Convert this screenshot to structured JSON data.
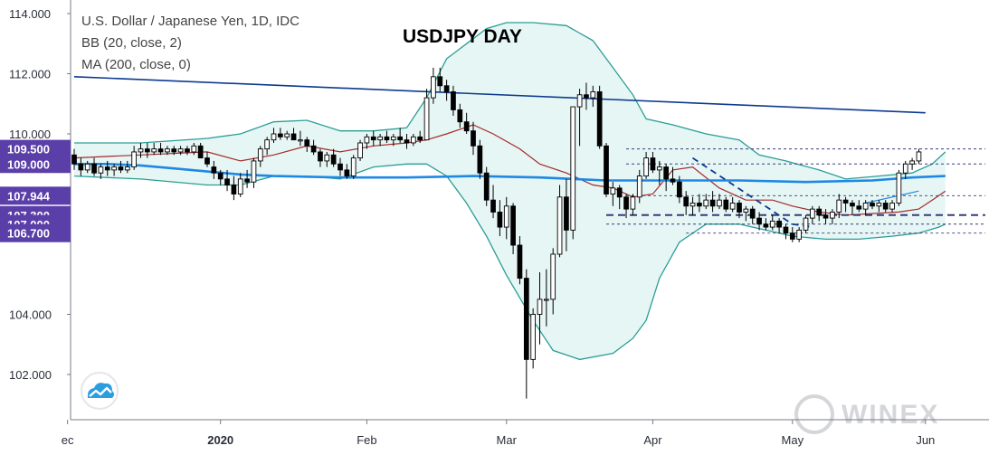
{
  "colors": {
    "axis_badge": "#5b3fa8",
    "bb_line": "#2a9d96",
    "bb_fill": "#e6f6f4",
    "ma200": "#1e88e5",
    "bb_basis": "#a52a2a",
    "trendline": "#0d3a8f",
    "level_dash": "#3a3a7a",
    "candle": "#000000"
  },
  "legend": {
    "symbol": "U.S. Dollar / Japanese Yen, 1D, IDC",
    "bb": "BB (20, close, 2)",
    "ma": "MA (200, close, 0)"
  },
  "title": "USDJPY DAY",
  "watermark": "WINEX",
  "logo_icon": "tradingview-cloud-icon",
  "chart_data": {
    "type": "candlestick",
    "ylim": [
      100.9,
      114.1
    ],
    "yticks": [
      {
        "value": 114.0,
        "label": "114.000",
        "highlight": false
      },
      {
        "value": 112.0,
        "label": "112.000",
        "highlight": false
      },
      {
        "value": 110.0,
        "label": "110.000",
        "highlight": false
      },
      {
        "value": 109.5,
        "label": "109.500",
        "highlight": true
      },
      {
        "value": 109.0,
        "label": "109.000",
        "highlight": true
      },
      {
        "value": 107.944,
        "label": "107.944",
        "highlight": true
      },
      {
        "value": 107.3,
        "label": "107.300",
        "highlight": true
      },
      {
        "value": 107.0,
        "label": "107.000",
        "highlight": true
      },
      {
        "value": 106.7,
        "label": "106.700",
        "highlight": true
      },
      {
        "value": 104.0,
        "label": "104.000",
        "highlight": false
      },
      {
        "value": 102.0,
        "label": "102.000",
        "highlight": false
      }
    ],
    "xticks": [
      {
        "index": -1,
        "label": "ec",
        "bold": false
      },
      {
        "index": 22,
        "label": "2020",
        "bold": true
      },
      {
        "index": 44,
        "label": "Feb",
        "bold": false
      },
      {
        "index": 65,
        "label": "Mar",
        "bold": false
      },
      {
        "index": 87,
        "label": "Apr",
        "bold": false
      },
      {
        "index": 108,
        "label": "May",
        "bold": false
      },
      {
        "index": 128,
        "label": "Jun",
        "bold": false
      }
    ],
    "candles": [
      [
        109.3,
        109.5,
        108.8,
        109.0
      ],
      [
        109.0,
        109.2,
        108.6,
        108.8
      ],
      [
        108.8,
        109.1,
        108.7,
        109.0
      ],
      [
        109.0,
        109.2,
        108.6,
        108.7
      ],
      [
        108.7,
        109.0,
        108.5,
        108.9
      ],
      [
        108.9,
        109.1,
        108.6,
        108.8
      ],
      [
        108.8,
        109.0,
        108.6,
        108.9
      ],
      [
        108.9,
        109.1,
        108.7,
        108.8
      ],
      [
        108.8,
        109.1,
        108.7,
        108.9
      ],
      [
        108.9,
        109.6,
        108.8,
        109.4
      ],
      [
        109.4,
        109.7,
        109.2,
        109.5
      ],
      [
        109.5,
        109.7,
        109.2,
        109.4
      ],
      [
        109.4,
        109.7,
        109.3,
        109.5
      ],
      [
        109.5,
        109.7,
        109.3,
        109.4
      ],
      [
        109.4,
        109.6,
        109.3,
        109.5
      ],
      [
        109.5,
        109.6,
        109.3,
        109.4
      ],
      [
        109.4,
        109.6,
        109.3,
        109.5
      ],
      [
        109.5,
        109.6,
        109.3,
        109.4
      ],
      [
        109.4,
        109.7,
        109.3,
        109.6
      ],
      [
        109.6,
        109.7,
        109.2,
        109.2
      ],
      [
        109.2,
        109.4,
        108.9,
        109.0
      ],
      [
        108.9,
        109.1,
        108.5,
        108.7
      ],
      [
        108.7,
        108.8,
        108.3,
        108.5
      ],
      [
        108.5,
        108.8,
        108.1,
        108.3
      ],
      [
        108.3,
        108.6,
        107.8,
        108.0
      ],
      [
        108.0,
        108.7,
        107.9,
        108.5
      ],
      [
        108.5,
        108.8,
        108.2,
        108.4
      ],
      [
        108.4,
        109.2,
        108.2,
        109.1
      ],
      [
        109.1,
        109.6,
        108.9,
        109.5
      ],
      [
        109.5,
        109.9,
        109.3,
        109.8
      ],
      [
        109.8,
        110.2,
        109.7,
        110.0
      ],
      [
        110.0,
        110.2,
        109.8,
        109.9
      ],
      [
        109.9,
        110.1,
        109.8,
        110.0
      ],
      [
        110.0,
        110.2,
        109.8,
        109.8
      ],
      [
        109.8,
        110.1,
        109.6,
        109.8
      ],
      [
        109.8,
        109.9,
        109.4,
        109.6
      ],
      [
        109.6,
        109.8,
        109.3,
        109.4
      ],
      [
        109.4,
        109.5,
        108.9,
        109.1
      ],
      [
        109.1,
        109.4,
        108.9,
        109.3
      ],
      [
        109.3,
        109.5,
        108.9,
        109.0
      ],
      [
        109.0,
        109.2,
        108.6,
        108.8
      ],
      [
        108.8,
        109.0,
        108.5,
        108.6
      ],
      [
        108.6,
        109.3,
        108.5,
        109.2
      ],
      [
        109.2,
        109.8,
        109.1,
        109.7
      ],
      [
        109.7,
        110.0,
        109.5,
        109.9
      ],
      [
        109.9,
        110.1,
        109.6,
        109.8
      ],
      [
        109.8,
        110.0,
        109.6,
        109.9
      ],
      [
        109.9,
        110.1,
        109.7,
        109.8
      ],
      [
        109.8,
        110.0,
        109.6,
        109.9
      ],
      [
        109.9,
        110.2,
        109.7,
        109.8
      ],
      [
        109.8,
        110.0,
        109.5,
        109.7
      ],
      [
        109.7,
        110.0,
        109.6,
        109.9
      ],
      [
        109.9,
        110.1,
        109.7,
        109.8
      ],
      [
        109.8,
        111.5,
        109.8,
        111.2
      ],
      [
        111.2,
        112.2,
        111.0,
        111.9
      ],
      [
        111.9,
        112.2,
        111.4,
        111.6
      ],
      [
        111.6,
        111.8,
        111.1,
        111.4
      ],
      [
        111.4,
        111.6,
        110.6,
        110.8
      ],
      [
        110.8,
        111.0,
        110.2,
        110.4
      ],
      [
        110.4,
        110.7,
        110.0,
        110.1
      ],
      [
        110.1,
        110.4,
        109.3,
        109.6
      ],
      [
        109.6,
        109.8,
        108.5,
        108.7
      ],
      [
        108.7,
        108.9,
        107.6,
        107.8
      ],
      [
        107.8,
        108.3,
        107.2,
        107.4
      ],
      [
        107.4,
        107.8,
        106.6,
        106.9
      ],
      [
        106.9,
        107.9,
        106.5,
        107.6
      ],
      [
        107.6,
        107.7,
        106.0,
        106.3
      ],
      [
        106.3,
        106.6,
        105.0,
        105.2
      ],
      [
        105.2,
        105.5,
        101.2,
        102.5
      ],
      [
        102.5,
        104.2,
        102.2,
        104.0
      ],
      [
        104.0,
        105.4,
        103.0,
        104.5
      ],
      [
        104.5,
        105.5,
        103.6,
        104.5
      ],
      [
        104.5,
        106.2,
        104.0,
        106.0
      ],
      [
        106.0,
        108.3,
        105.9,
        107.9
      ],
      [
        107.9,
        108.5,
        106.1,
        106.8
      ],
      [
        106.8,
        110.9,
        106.5,
        110.9
      ],
      [
        110.9,
        111.5,
        109.6,
        111.3
      ],
      [
        111.3,
        111.7,
        110.8,
        111.2
      ],
      [
        111.2,
        111.6,
        110.9,
        111.4
      ],
      [
        111.4,
        111.6,
        109.5,
        109.6
      ],
      [
        109.6,
        109.7,
        107.9,
        108.0
      ],
      [
        108.0,
        108.4,
        107.6,
        108.2
      ],
      [
        108.2,
        108.3,
        107.5,
        107.9
      ],
      [
        107.9,
        108.0,
        107.2,
        107.5
      ],
      [
        107.5,
        108.0,
        107.3,
        107.9
      ],
      [
        107.9,
        108.8,
        107.7,
        108.6
      ],
      [
        108.6,
        109.4,
        108.5,
        109.2
      ],
      [
        109.2,
        109.4,
        108.7,
        108.8
      ],
      [
        108.8,
        109.1,
        108.3,
        108.9
      ],
      [
        108.9,
        109.0,
        108.1,
        108.5
      ],
      [
        108.5,
        108.9,
        108.3,
        108.4
      ],
      [
        108.4,
        108.6,
        107.7,
        107.9
      ],
      [
        107.9,
        108.1,
        107.3,
        107.6
      ],
      [
        107.6,
        107.9,
        107.3,
        107.7
      ],
      [
        107.7,
        108.0,
        107.4,
        107.6
      ],
      [
        107.6,
        108.0,
        107.5,
        107.8
      ],
      [
        107.8,
        108.1,
        107.4,
        107.6
      ],
      [
        107.6,
        108.0,
        107.5,
        107.8
      ],
      [
        107.8,
        107.9,
        107.4,
        107.5
      ],
      [
        107.5,
        107.9,
        107.4,
        107.7
      ],
      [
        107.7,
        107.8,
        107.2,
        107.4
      ],
      [
        107.4,
        107.6,
        107.1,
        107.5
      ],
      [
        107.5,
        107.6,
        107.0,
        107.2
      ],
      [
        107.2,
        107.4,
        106.8,
        107.0
      ],
      [
        107.0,
        107.2,
        106.8,
        106.9
      ],
      [
        106.9,
        107.3,
        106.8,
        107.1
      ],
      [
        107.1,
        107.2,
        106.7,
        106.9
      ],
      [
        106.9,
        107.0,
        106.5,
        106.7
      ],
      [
        106.7,
        106.9,
        106.4,
        106.5
      ],
      [
        106.5,
        106.9,
        106.4,
        106.8
      ],
      [
        106.8,
        107.3,
        106.7,
        107.2
      ],
      [
        107.2,
        107.6,
        107.0,
        107.5
      ],
      [
        107.5,
        107.6,
        107.1,
        107.3
      ],
      [
        107.3,
        107.5,
        107.0,
        107.2
      ],
      [
        107.2,
        107.5,
        107.0,
        107.4
      ],
      [
        107.4,
        108.0,
        107.2,
        107.8
      ],
      [
        107.8,
        107.9,
        107.4,
        107.7
      ],
      [
        107.7,
        107.8,
        107.3,
        107.6
      ],
      [
        107.6,
        107.8,
        107.4,
        107.5
      ],
      [
        107.5,
        107.8,
        107.3,
        107.7
      ],
      [
        107.7,
        107.8,
        107.5,
        107.6
      ],
      [
        107.6,
        107.8,
        107.4,
        107.7
      ],
      [
        107.7,
        107.8,
        107.4,
        107.5
      ],
      [
        107.5,
        107.8,
        107.4,
        107.7
      ],
      [
        107.7,
        108.8,
        107.6,
        108.7
      ],
      [
        108.7,
        109.1,
        108.5,
        109.0
      ],
      [
        109.0,
        109.2,
        108.8,
        109.1
      ],
      [
        109.1,
        109.5,
        109.0,
        109.4
      ]
    ],
    "bb_upper": [
      [
        0,
        109.7
      ],
      [
        10,
        109.7
      ],
      [
        20,
        109.85
      ],
      [
        25,
        110.0
      ],
      [
        30,
        110.4
      ],
      [
        35,
        110.45
      ],
      [
        40,
        110.1
      ],
      [
        45,
        110.1
      ],
      [
        50,
        110.2
      ],
      [
        53,
        111.2
      ],
      [
        56,
        112.5
      ],
      [
        59,
        113.0
      ],
      [
        62,
        113.5
      ],
      [
        65,
        113.7
      ],
      [
        69,
        113.7
      ],
      [
        74,
        113.6
      ],
      [
        78,
        113.1
      ],
      [
        81,
        112.2
      ],
      [
        84,
        111.3
      ],
      [
        86,
        110.5
      ],
      [
        90,
        110.3
      ],
      [
        95,
        110.0
      ],
      [
        100,
        109.8
      ],
      [
        103,
        109.3
      ],
      [
        107,
        109.1
      ],
      [
        112,
        108.8
      ],
      [
        116,
        108.5
      ],
      [
        121,
        108.6
      ],
      [
        126,
        108.7
      ],
      [
        129,
        109.0
      ],
      [
        131,
        109.4
      ]
    ],
    "bb_lower": [
      [
        0,
        108.6
      ],
      [
        10,
        108.5
      ],
      [
        20,
        108.3
      ],
      [
        25,
        108.3
      ],
      [
        30,
        108.6
      ],
      [
        35,
        108.6
      ],
      [
        40,
        108.5
      ],
      [
        45,
        108.9
      ],
      [
        50,
        109.0
      ],
      [
        53,
        109.0
      ],
      [
        56,
        108.6
      ],
      [
        59,
        107.7
      ],
      [
        62,
        106.6
      ],
      [
        65,
        105.3
      ],
      [
        69,
        103.8
      ],
      [
        72,
        102.8
      ],
      [
        76,
        102.5
      ],
      [
        81,
        102.7
      ],
      [
        84,
        103.2
      ],
      [
        86,
        103.8
      ],
      [
        88,
        105.2
      ],
      [
        91,
        106.4
      ],
      [
        95,
        107.0
      ],
      [
        100,
        107.0
      ],
      [
        104,
        106.8
      ],
      [
        108,
        106.6
      ],
      [
        113,
        106.5
      ],
      [
        118,
        106.5
      ],
      [
        123,
        106.6
      ],
      [
        127,
        106.7
      ],
      [
        130,
        106.9
      ],
      [
        131,
        107.0
      ]
    ],
    "bb_basis": [
      [
        0,
        109.2
      ],
      [
        10,
        109.3
      ],
      [
        20,
        109.4
      ],
      [
        25,
        109.1
      ],
      [
        30,
        109.3
      ],
      [
        35,
        109.6
      ],
      [
        40,
        109.4
      ],
      [
        45,
        109.6
      ],
      [
        50,
        109.7
      ],
      [
        53,
        109.8
      ],
      [
        56,
        110.0
      ],
      [
        60,
        110.3
      ],
      [
        63,
        110.0
      ],
      [
        67,
        109.5
      ],
      [
        70,
        109.0
      ],
      [
        74,
        108.7
      ],
      [
        78,
        108.3
      ],
      [
        81,
        108.2
      ],
      [
        84,
        107.9
      ],
      [
        87,
        108.0
      ],
      [
        90,
        108.8
      ],
      [
        93,
        108.9
      ],
      [
        97,
        108.2
      ],
      [
        101,
        107.8
      ],
      [
        105,
        107.8
      ],
      [
        108,
        107.6
      ],
      [
        112,
        107.4
      ],
      [
        116,
        107.3
      ],
      [
        120,
        107.35
      ],
      [
        124,
        107.4
      ],
      [
        127,
        107.5
      ],
      [
        129,
        107.8
      ],
      [
        131,
        108.1
      ]
    ],
    "ma200": [
      [
        0,
        109.0
      ],
      [
        5,
        109.0
      ],
      [
        10,
        108.95
      ],
      [
        15,
        108.85
      ],
      [
        20,
        108.75
      ],
      [
        25,
        108.65
      ],
      [
        30,
        108.6
      ],
      [
        40,
        108.55
      ],
      [
        50,
        108.55
      ],
      [
        60,
        108.6
      ],
      [
        70,
        108.55
      ],
      [
        80,
        108.45
      ],
      [
        90,
        108.45
      ],
      [
        100,
        108.45
      ],
      [
        110,
        108.4
      ],
      [
        120,
        108.45
      ],
      [
        126,
        108.55
      ],
      [
        131,
        108.6
      ]
    ],
    "trendline": [
      [
        0,
        111.9
      ],
      [
        128,
        110.7
      ]
    ],
    "dashed_levels": [
      {
        "value": 109.5,
        "x_from": 83,
        "x_to": 137,
        "weight": "thin"
      },
      {
        "value": 109.0,
        "x_from": 83,
        "x_to": 137,
        "weight": "thin"
      },
      {
        "value": 107.944,
        "x_from": 83,
        "x_to": 137,
        "weight": "thin"
      },
      {
        "value": 107.3,
        "x_from": 80,
        "x_to": 137,
        "weight": "thick"
      },
      {
        "value": 107.0,
        "x_from": 80,
        "x_to": 137,
        "weight": "thin"
      },
      {
        "value": 106.7,
        "x_from": 92,
        "x_to": 137,
        "weight": "thin"
      }
    ],
    "down_trendline": [
      [
        93,
        109.2
      ],
      [
        108,
        107.0
      ],
      [
        111,
        106.9
      ]
    ],
    "minor_trendline": [
      [
        119,
        107.7
      ],
      [
        127,
        108.1
      ]
    ]
  }
}
